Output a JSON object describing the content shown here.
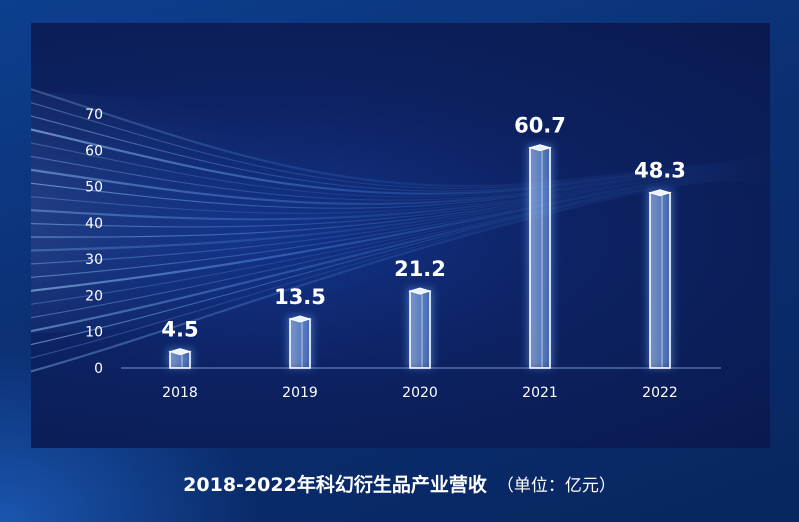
{
  "colors": {
    "background": "#0b2f72",
    "panel": "#0d2263",
    "bar": "#ffffff"
  },
  "chart_data": {
    "type": "bar",
    "categories": [
      "2018",
      "2019",
      "2020",
      "2021",
      "2022"
    ],
    "values": [
      4.5,
      13.5,
      21.2,
      60.7,
      48.3
    ],
    "value_labels": [
      "4.5",
      "13.5",
      "21.2",
      "60.7",
      "48.3"
    ],
    "yticks": [
      "0",
      "10",
      "20",
      "30",
      "40",
      "50",
      "60",
      "70"
    ],
    "ylim": [
      0,
      70
    ],
    "grid": false,
    "legend": "none",
    "title": "2018-2022年科幻衍生品产业营收",
    "unit_note": "（单位：亿元）"
  }
}
